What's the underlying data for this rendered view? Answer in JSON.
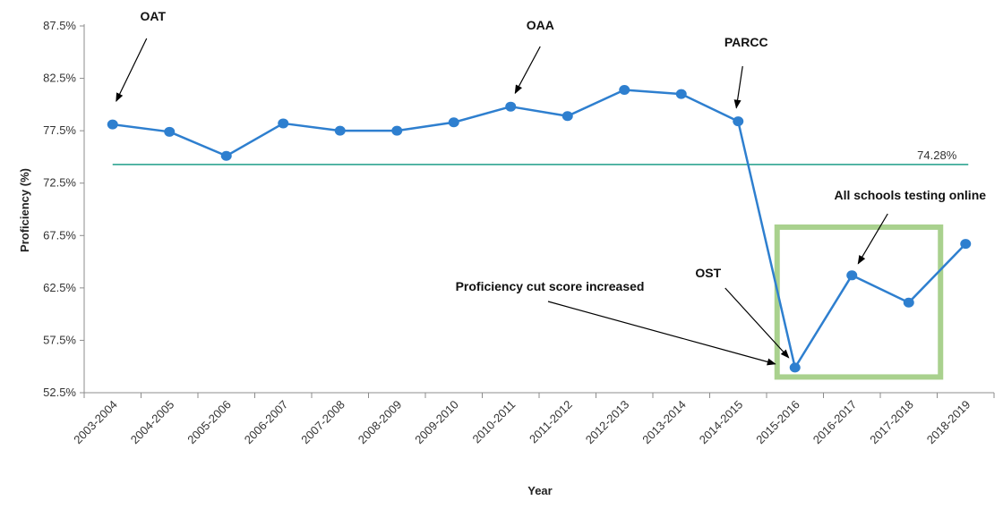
{
  "chart_data": {
    "type": "line",
    "title": "",
    "xlabel": "Year",
    "ylabel": "Proficiency (%)",
    "ylim": [
      52.5,
      87.5
    ],
    "yticks": [
      "52.5%",
      "57.5%",
      "62.5%",
      "67.5%",
      "72.5%",
      "77.5%",
      "82.5%",
      "87.5%"
    ],
    "categories": [
      "2003-2004",
      "2004-2005",
      "2005-2006",
      "2006-2007",
      "2007-2008",
      "2008-2009",
      "2009-2010",
      "2010-2011",
      "2011-2012",
      "2012-2013",
      "2013-2014",
      "2014-2015",
      "2015-2016",
      "2016-2017",
      "2017-2018",
      "2018-2019"
    ],
    "series": [
      {
        "values": [
          78.1,
          77.4,
          75.1,
          78.2,
          77.5,
          77.5,
          78.3,
          79.8,
          78.9,
          81.4,
          81.0,
          78.4,
          54.9,
          63.7,
          61.1,
          66.7
        ]
      }
    ],
    "reference_line": {
      "value": 74.28,
      "label": "74.28%",
      "color": "#1f9e89"
    },
    "highlight_box": {
      "from_category": "2015-2016",
      "to_category": "2018-2019",
      "color": "#a9d18e"
    },
    "annotations": [
      {
        "text": "OAT",
        "target": "2003-2004"
      },
      {
        "text": "OAA",
        "target": "2010-2011"
      },
      {
        "text": "PARCC",
        "target": "2014-2015"
      },
      {
        "text": "OST",
        "target": "2015-2016"
      },
      {
        "text": "Proficiency cut score increased",
        "target": "2015-2016"
      },
      {
        "text": "All schools testing online",
        "target": "2016-2017"
      }
    ],
    "line_color": "#2e7fcf",
    "grid": false
  }
}
